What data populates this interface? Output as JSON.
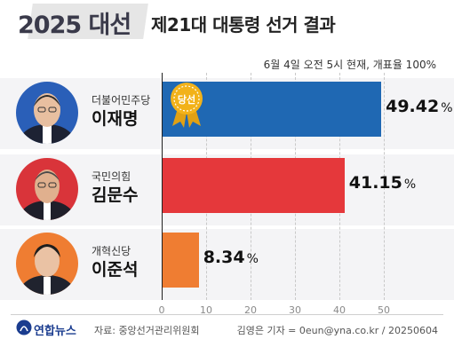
{
  "header": {
    "title": "2025 대선",
    "subtitle": "제21대 대통령 선거 결과",
    "note": "6월 4일 오전 5시 현재, 개표율 100%"
  },
  "candidates": [
    {
      "party": "더불어민주당",
      "name": "이재명",
      "value": 49.42,
      "value_text": "49.42",
      "unit": "%",
      "color": "#1f68b3",
      "photo_color": "#2a5fb8",
      "badge": "당선"
    },
    {
      "party": "국민의힘",
      "name": "김문수",
      "value": 41.15,
      "value_text": "41.15",
      "unit": "%",
      "color": "#e5383b",
      "photo_color": "#d9343a"
    },
    {
      "party": "개혁신당",
      "name": "이준석",
      "value": 8.34,
      "value_text": "8.34",
      "unit": "%",
      "color": "#ef7d32",
      "photo_color": "#ef7d32"
    }
  ],
  "chart_data": {
    "type": "bar",
    "orientation": "horizontal",
    "title": "제21대 대통령 선거 결과",
    "categories": [
      "이재명",
      "김문수",
      "이준석"
    ],
    "values": [
      49.42,
      41.15,
      8.34
    ],
    "xlim": [
      0,
      50
    ],
    "ticks": [
      "0",
      "10",
      "20",
      "30",
      "40",
      "50"
    ],
    "grid": true
  },
  "footer": {
    "logo": "연합뉴스",
    "source": "자료: 중앙선거관리위원회",
    "credit": "김영은 기자 = 0eun@yna.co.kr / 20250604"
  },
  "colors": {
    "badge": "#f2b21a"
  },
  "icons": {
    "badge": "rosette-badge-icon",
    "logo": "yonhap-logo-icon"
  }
}
